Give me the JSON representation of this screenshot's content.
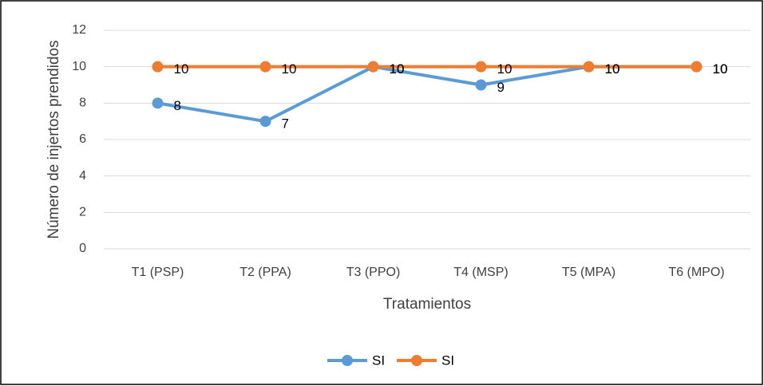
{
  "chart_data": {
    "type": "line",
    "x_label": "Tratamientos",
    "y_label": "Número de injertos prendidos",
    "categories": [
      "T1 (PSP)",
      "T2 (PPA)",
      "T3 (PPO)",
      "T4 (MSP)",
      "T5 (MPA)",
      "T6 (MPO)"
    ],
    "series": [
      {
        "name": "SI",
        "color": "#5b9bd5",
        "values": [
          8,
          7,
          10,
          9,
          10,
          10
        ]
      },
      {
        "name": "SI",
        "color": "#ed7d31",
        "values": [
          10,
          10,
          10,
          10,
          10,
          10
        ]
      }
    ],
    "ylim": [
      0,
      12
    ],
    "yticks": [
      0,
      2,
      4,
      6,
      8,
      10,
      12
    ],
    "grid": true,
    "legend": "bottom"
  }
}
